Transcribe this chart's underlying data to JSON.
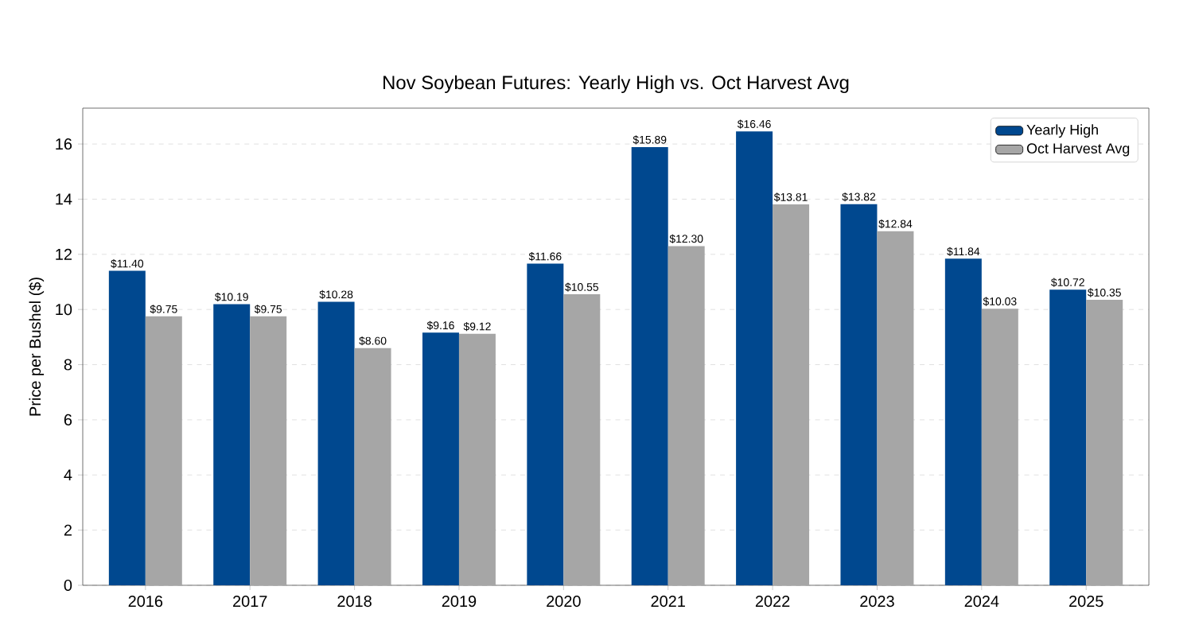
{
  "chart_data": {
    "type": "bar",
    "title": "Nov Soybean Futures: Yearly High vs. Oct Harvest Avg",
    "ylabel": "Price per Bushel ($)",
    "categories": [
      "2016",
      "2017",
      "2018",
      "2019",
      "2020",
      "2021",
      "2022",
      "2023",
      "2024",
      "2025"
    ],
    "series": [
      {
        "name": "Yearly High",
        "color": "#00488f",
        "values": [
          11.4,
          10.19,
          10.28,
          9.16,
          11.66,
          15.89,
          16.46,
          13.82,
          11.84,
          10.72
        ],
        "value_labels": [
          "$11.40",
          "$10.19",
          "$10.28",
          "$9.16",
          "$11.66",
          "$15.89",
          "$16.46",
          "$13.82",
          "$11.84",
          "$10.72"
        ]
      },
      {
        "name": "Oct Harvest Avg",
        "color": "#a6a6a6",
        "values": [
          9.75,
          9.75,
          8.6,
          9.12,
          10.55,
          12.3,
          13.81,
          12.84,
          10.03,
          10.35
        ],
        "value_labels": [
          "$9.75",
          "$9.75",
          "$8.60",
          "$9.12",
          "$10.55",
          "$12.30",
          "$13.81",
          "$12.84",
          "$10.03",
          "$10.35"
        ]
      }
    ],
    "ylim": [
      0,
      17.3
    ],
    "yticks": [
      0,
      2,
      4,
      6,
      8,
      10,
      12,
      14,
      16
    ],
    "grid": "y",
    "legend": "top right"
  }
}
